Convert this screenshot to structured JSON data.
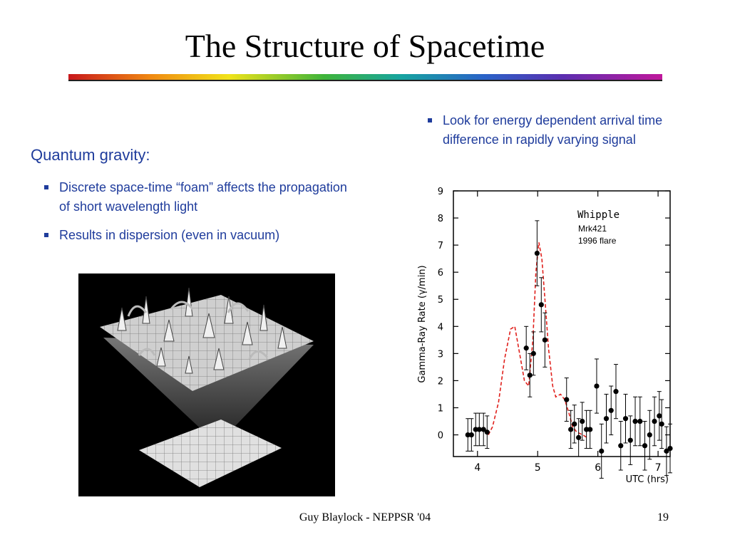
{
  "slide": {
    "title": "The Structure of Spacetime",
    "left_heading": "Quantum gravity:",
    "left_bullets": [
      "Discrete space-time “foam” affects the propagation of short wavelength light",
      "Results in dispersion (even in vacuum)"
    ],
    "right_bullets": [
      "Look for energy dependent arrival time difference in rapidly varying signal"
    ],
    "footer": "Guy Blaylock - NEPPSR '04",
    "page_number": "19"
  },
  "colors": {
    "bullet_text": "#1f3c9c",
    "model_curve": "#e0201c"
  },
  "chart_data": {
    "type": "scatter",
    "xlabel": "UTC (hrs)",
    "ylabel": "Gamma-Ray Rate (γ/min)",
    "xlim": [
      3.6,
      7.2
    ],
    "ylim": [
      -0.8,
      9.0
    ],
    "x_ticks": [
      "4",
      "5",
      "6",
      "7"
    ],
    "y_ticks": [
      "0",
      "1",
      "2",
      "3",
      "4",
      "5",
      "6",
      "7",
      "8",
      "9"
    ],
    "legend_title": "Whipple",
    "annotation_lines": [
      "Mrk421",
      "1996 flare"
    ],
    "series": [
      {
        "type": "errorbar",
        "points": [
          {
            "x": 3.84,
            "y": 0.0,
            "err": 0.6
          },
          {
            "x": 3.9,
            "y": 0.0,
            "err": 0.6
          },
          {
            "x": 3.97,
            "y": 0.2,
            "err": 0.6
          },
          {
            "x": 4.03,
            "y": 0.2,
            "err": 0.6
          },
          {
            "x": 4.1,
            "y": 0.2,
            "err": 0.6
          },
          {
            "x": 4.16,
            "y": 0.1,
            "err": 0.6
          },
          {
            "x": 4.81,
            "y": 3.2,
            "err": 0.8
          },
          {
            "x": 4.87,
            "y": 2.2,
            "err": 0.8
          },
          {
            "x": 4.93,
            "y": 3.0,
            "err": 0.8
          },
          {
            "x": 4.99,
            "y": 6.7,
            "err": 1.2
          },
          {
            "x": 5.06,
            "y": 4.8,
            "err": 1.0
          },
          {
            "x": 5.12,
            "y": 3.5,
            "err": 1.0
          },
          {
            "x": 5.48,
            "y": 1.3,
            "err": 0.8
          },
          {
            "x": 5.55,
            "y": 0.2,
            "err": 0.7
          },
          {
            "x": 5.61,
            "y": 0.4,
            "err": 0.7
          },
          {
            "x": 5.68,
            "y": -0.1,
            "err": 0.7
          },
          {
            "x": 5.74,
            "y": 0.5,
            "err": 0.7
          },
          {
            "x": 5.81,
            "y": 0.2,
            "err": 0.7
          },
          {
            "x": 5.87,
            "y": 0.2,
            "err": 0.7
          },
          {
            "x": 5.98,
            "y": 1.8,
            "err": 1.0
          },
          {
            "x": 6.06,
            "y": -0.6,
            "err": 1.0
          },
          {
            "x": 6.14,
            "y": 0.6,
            "err": 0.9
          },
          {
            "x": 6.22,
            "y": 0.9,
            "err": 0.9
          },
          {
            "x": 6.3,
            "y": 1.6,
            "err": 1.0
          },
          {
            "x": 6.38,
            "y": -0.4,
            "err": 0.9
          },
          {
            "x": 6.46,
            "y": 0.6,
            "err": 0.9
          },
          {
            "x": 6.54,
            "y": -0.2,
            "err": 0.9
          },
          {
            "x": 6.62,
            "y": 0.5,
            "err": 0.9
          },
          {
            "x": 6.7,
            "y": 0.5,
            "err": 0.9
          },
          {
            "x": 6.78,
            "y": -0.4,
            "err": 0.9
          },
          {
            "x": 6.86,
            "y": 0.0,
            "err": 0.9
          },
          {
            "x": 6.94,
            "y": 0.5,
            "err": 0.9
          },
          {
            "x": 7.02,
            "y": 0.7,
            "err": 0.9
          },
          {
            "x": 7.06,
            "y": 0.4,
            "err": 0.9
          },
          {
            "x": 7.14,
            "y": -0.6,
            "err": 0.9
          },
          {
            "x": 7.2,
            "y": -0.5,
            "err": 0.9
          }
        ]
      },
      {
        "type": "dashed-line",
        "points": [
          [
            4.18,
            0.0
          ],
          [
            4.25,
            0.3
          ],
          [
            4.35,
            1.2
          ],
          [
            4.45,
            2.8
          ],
          [
            4.55,
            3.9
          ],
          [
            4.62,
            4.0
          ],
          [
            4.7,
            3.0
          ],
          [
            4.78,
            2.0
          ],
          [
            4.85,
            1.8
          ],
          [
            4.92,
            3.5
          ],
          [
            4.97,
            6.0
          ],
          [
            5.02,
            7.1
          ],
          [
            5.07,
            6.5
          ],
          [
            5.12,
            5.0
          ],
          [
            5.18,
            3.2
          ],
          [
            5.25,
            1.8
          ],
          [
            5.3,
            1.4
          ],
          [
            5.38,
            1.5
          ],
          [
            5.45,
            1.3
          ],
          [
            5.52,
            0.8
          ],
          [
            5.58,
            0.3
          ],
          [
            5.65,
            0.1
          ],
          [
            5.75,
            0.0
          ],
          [
            5.82,
            -0.1
          ]
        ]
      }
    ]
  }
}
